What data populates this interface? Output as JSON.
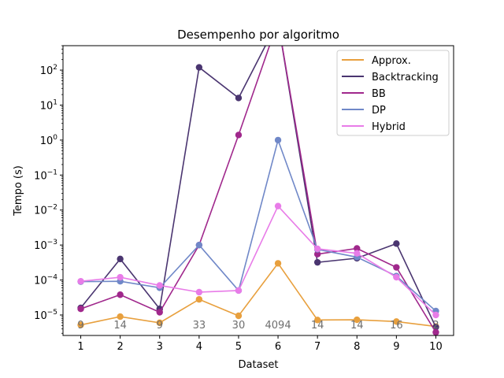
{
  "chart_data": {
    "type": "line",
    "title": "Desempenho por algoritmo",
    "xlabel": "Dataset",
    "ylabel": "Tempo (s)",
    "yscale": "log",
    "ylim": [
      2.6e-06,
      500
    ],
    "xlim": [
      0.55,
      10.45
    ],
    "x": [
      1,
      2,
      3,
      4,
      5,
      6,
      7,
      8,
      9,
      10
    ],
    "yticks": [
      1e-05,
      0.0001,
      0.001,
      0.01,
      0.1,
      1,
      10,
      100
    ],
    "ytick_labels": [
      {
        "base": "10",
        "exp": "−5"
      },
      {
        "base": "10",
        "exp": "−4"
      },
      {
        "base": "10",
        "exp": "−3"
      },
      {
        "base": "10",
        "exp": "−2"
      },
      {
        "base": "10",
        "exp": "−1"
      },
      {
        "base": "10",
        "exp": "0"
      },
      {
        "base": "10",
        "exp": "1"
      },
      {
        "base": "10",
        "exp": "2"
      }
    ],
    "grid": false,
    "legend_position": "top-right",
    "series": [
      {
        "name": "Approx.",
        "color": "#e8a03e",
        "values": [
          5.2e-06,
          9e-06,
          6e-06,
          2.8e-05,
          9.5e-06,
          0.0003,
          7.2e-06,
          7.3e-06,
          6.5e-06,
          4.7e-06
        ]
      },
      {
        "name": "Backtracking",
        "color": "#4a3570",
        "values": [
          1.6e-05,
          0.0004,
          1.5e-05,
          120,
          16,
          2500,
          0.00032,
          0.00042,
          0.0011,
          4.5e-06
        ]
      },
      {
        "name": "BB",
        "color": "#a0288c",
        "values": [
          1.5e-05,
          3.8e-05,
          1.2e-05,
          0.001,
          1.4,
          2500,
          0.00055,
          0.0008,
          0.00023,
          3.2e-06
        ]
      },
      {
        "name": "DP",
        "color": "#7088c8",
        "values": [
          9e-05,
          9.2e-05,
          6e-05,
          0.001,
          5e-05,
          1.0,
          0.00075,
          0.00045,
          0.00013,
          1.3e-05
        ]
      },
      {
        "name": "Hybrid",
        "color": "#e87ce8",
        "values": [
          9.2e-05,
          0.00012,
          7e-05,
          4.5e-05,
          5e-05,
          0.013,
          0.00078,
          0.00058,
          0.00012,
          1e-05
        ]
      }
    ],
    "annotations": [
      "9",
      "14",
      "9",
      "33",
      "30",
      "4094",
      "14",
      "14",
      "16",
      "2"
    ]
  }
}
